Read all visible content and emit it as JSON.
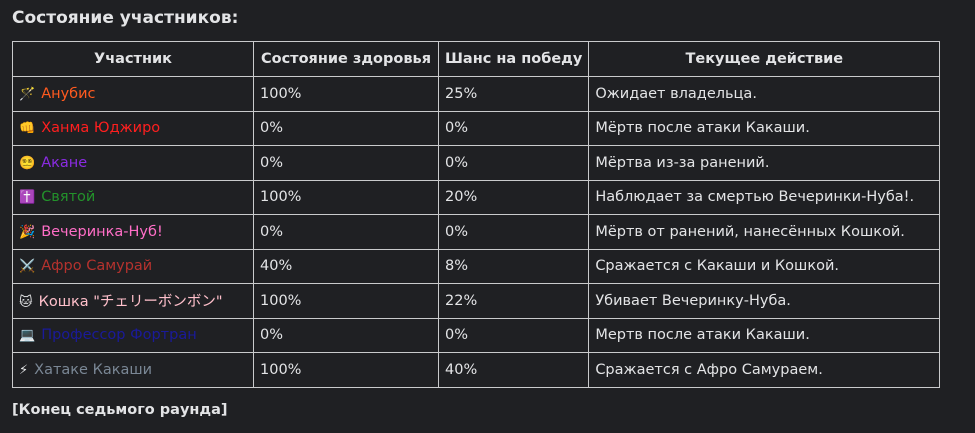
{
  "header": {
    "title": "Состояние участников:"
  },
  "table": {
    "columns": [
      "Участник",
      "Состояние здоровья",
      "Шанс на победу",
      "Текущее действие"
    ],
    "rows": [
      {
        "icon": "🪄",
        "name": "Анубис",
        "color": "#ff5a1f",
        "health": "100%",
        "chance": "25%",
        "action": "Ожидает владельца."
      },
      {
        "icon": "👊",
        "name": "Ханма Юджиро",
        "color": "#ff1f1f",
        "health": "0%",
        "chance": "0%",
        "action": "Мёртв после атаки Какаши."
      },
      {
        "icon": "😵‍💫",
        "name": "Акане",
        "color": "#8a2be2",
        "health": "0%",
        "chance": "0%",
        "action": "Мёртва из-за ранений."
      },
      {
        "icon": "✝️",
        "name": "Святой",
        "color": "#23922b",
        "health": "100%",
        "chance": "20%",
        "action": "Наблюдает за смертью Вечеринки-Нуба!."
      },
      {
        "icon": "🎉",
        "name": "Вечеринка-Нуб!",
        "color": "#ff6ec7",
        "health": "0%",
        "chance": "0%",
        "action": "Мёртв от ранений, нанесённых Кошкой."
      },
      {
        "icon": "⚔️",
        "name": "Афро Самурай",
        "color": "#b5322e",
        "health": "40%",
        "chance": "8%",
        "action": "Сражается с Какаши и Кошкой."
      },
      {
        "icon": "🐱",
        "name": "Кошка \"チェリーボンボン\"",
        "color": "#ffc0cb",
        "health": "100%",
        "chance": "22%",
        "action": "Убивает Вечеринку-Нуба."
      },
      {
        "icon": "💻",
        "name": "Профессор Фортран",
        "color": "#1a1a9a",
        "health": "0%",
        "chance": "0%",
        "action": "Мертв после атаки Какаши."
      },
      {
        "icon": "⚡",
        "name": "Хатаке Какаши",
        "color": "#7a8795",
        "health": "100%",
        "chance": "40%",
        "action": "Сражается с Афро Самураем."
      }
    ]
  },
  "footer": "[Конец седьмого раунда]"
}
